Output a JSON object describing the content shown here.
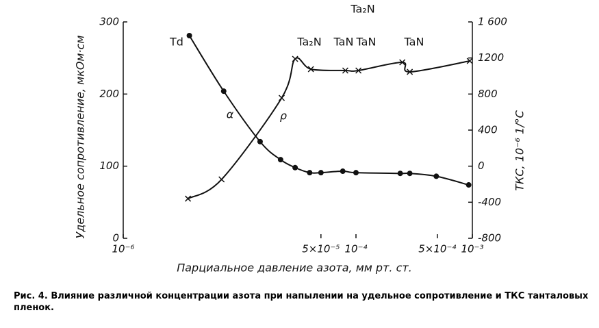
{
  "chart_data": {
    "type": "line",
    "log_x": true,
    "x_label": "Парциальное давление азота, мм рт. ст.",
    "y_label": "Удельное сопротивление, мкОм·см",
    "y2_label": "ТКС, 10⁻⁶ 1/°С",
    "caption": "Рис. 4. Влияние различной концентрации азота при напылении на удельное сопротивление и ТКС танталовых пленок.",
    "annotations": [
      "Ta₂N",
      "Td",
      "Ta₂N",
      "TaN",
      "TaN",
      "TaN",
      "α",
      "ρ"
    ],
    "xlim": [
      1e-06,
      0.001
    ],
    "xticks": [
      {
        "value": 1e-06,
        "label": "10⁻⁶"
      },
      {
        "value": 5e-05,
        "label": "5×10⁻⁵"
      },
      {
        "value": 0.0001,
        "label": "10⁻⁴"
      },
      {
        "value": 0.0005,
        "label": "5×10⁻⁴"
      },
      {
        "value": 0.001,
        "label": "10⁻³"
      }
    ],
    "ylim": [
      0,
      300
    ],
    "yticks": [
      0,
      100,
      200,
      300
    ],
    "y2lim": [
      -800,
      1600
    ],
    "y2ticks": [
      -800,
      -400,
      0,
      400,
      800,
      1200,
      {
        "value": 1600,
        "label": "1 600"
      }
    ],
    "series": [
      {
        "marker": "dot",
        "color": "#111111",
        "x": [
          3.7e-06,
          7.3e-06,
          1.5e-05,
          2.25e-05,
          3e-05,
          4e-05,
          5e-05,
          7.7e-05,
          0.0001,
          0.00024,
          0.00029,
          0.00049,
          0.00093
        ],
        "values": [
          281,
          204,
          134,
          109,
          98,
          91,
          91,
          93,
          91,
          90,
          90,
          86,
          74
        ]
      },
      {
        "marker": "cross",
        "color": "#111111",
        "axis": "y2",
        "x": [
          3.6e-06,
          7e-06,
          2.3e-05,
          3e-05,
          4.1e-05,
          8.1e-05,
          0.000105,
          0.00025,
          0.00029,
          0.00095
        ],
        "values": [
          -360,
          -147,
          757,
          1190,
          1076,
          1061,
          1061,
          1152,
          1046,
          1167
        ]
      }
    ]
  }
}
